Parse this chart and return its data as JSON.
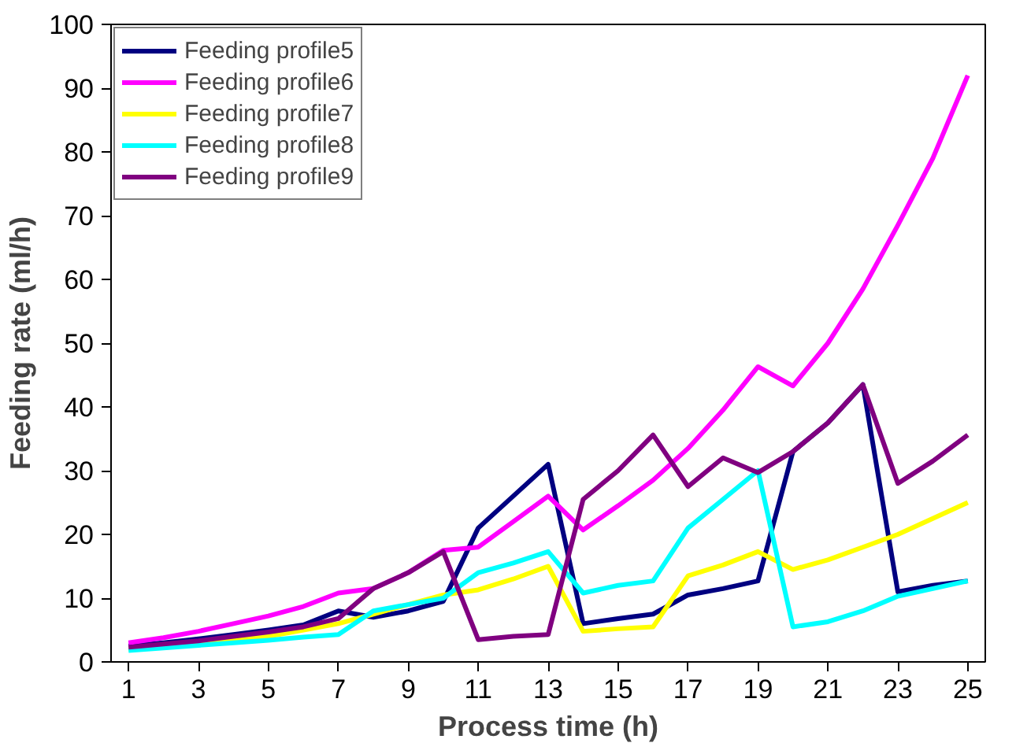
{
  "chart_data": {
    "type": "line",
    "xlabel": "Process time (h)",
    "ylabel": "Feeding rate (ml/h)",
    "x": [
      1,
      2,
      3,
      4,
      5,
      6,
      7,
      8,
      9,
      10,
      11,
      12,
      13,
      14,
      15,
      16,
      17,
      18,
      19,
      20,
      21,
      22,
      23,
      24,
      25
    ],
    "xlim": [
      0.5,
      25.5
    ],
    "xticks": [
      1,
      3,
      5,
      7,
      9,
      11,
      13,
      15,
      17,
      19,
      21,
      23,
      25
    ],
    "ylim": [
      0,
      100
    ],
    "yticks": [
      0,
      10,
      20,
      30,
      40,
      50,
      60,
      70,
      80,
      90,
      100
    ],
    "grid": false,
    "legend": "top left",
    "marker": "none",
    "line_style": "solid",
    "series": [
      {
        "name": "Feeding profile5",
        "color": "#000080",
        "values": [
          2.5,
          3,
          3.6,
          4.3,
          5,
          5.8,
          8,
          7,
          8,
          9.5,
          21,
          26,
          31,
          6,
          6.8,
          7.5,
          10.5,
          11.5,
          12.7,
          33,
          37.5,
          43.5,
          11,
          12,
          12.7
        ]
      },
      {
        "name": "Feeding profile6",
        "color": "#ff00ff",
        "values": [
          3,
          3.8,
          4.8,
          6,
          7.2,
          8.7,
          10.8,
          11.5,
          14,
          17.5,
          18,
          22,
          26,
          20.7,
          24.5,
          28.5,
          33.5,
          39.5,
          46.3,
          43.3,
          50,
          58.5,
          68.5,
          79,
          92
        ]
      },
      {
        "name": "Feeding profile7",
        "color": "#ffff00",
        "values": [
          2,
          2.5,
          3,
          3.5,
          4,
          5,
          6,
          7.5,
          9,
          10.5,
          11.3,
          13,
          15,
          4.8,
          5.2,
          5.5,
          13.5,
          15.2,
          17.3,
          14.5,
          16,
          18,
          20,
          22.5,
          25
        ]
      },
      {
        "name": "Feeding profile8",
        "color": "#00ffff",
        "values": [
          1.8,
          2.2,
          2.6,
          3,
          3.4,
          3.9,
          4.3,
          8,
          9,
          10,
          14,
          15.5,
          17.3,
          10.8,
          12,
          12.7,
          21,
          25.5,
          30,
          5.5,
          6.3,
          8,
          10.3,
          11.5,
          12.7
        ]
      },
      {
        "name": "Feeding profile9",
        "color": "#800080",
        "values": [
          2.3,
          2.8,
          3.3,
          4,
          4.7,
          5.5,
          6.8,
          11.5,
          14,
          17.3,
          3.5,
          4,
          4.3,
          25.5,
          30,
          35.6,
          27.5,
          32,
          29.7,
          33,
          37.5,
          43.5,
          28,
          31.5,
          35.6
        ]
      }
    ]
  }
}
